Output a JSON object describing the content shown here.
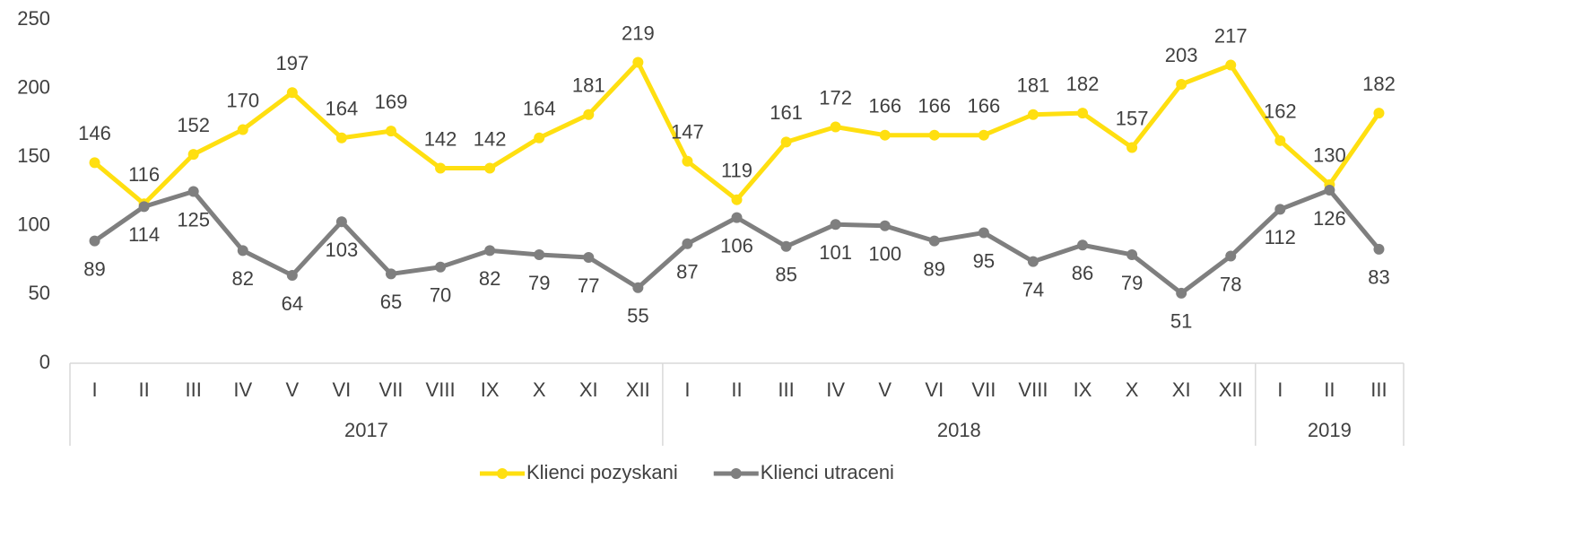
{
  "chart_data": {
    "type": "line",
    "groups": [
      {
        "label": "2017",
        "categories": [
          "I",
          "II",
          "III",
          "IV",
          "V",
          "VI",
          "VII",
          "VIII",
          "IX",
          "X",
          "XI",
          "XII"
        ]
      },
      {
        "label": "2018",
        "categories": [
          "I",
          "II",
          "III",
          "IV",
          "V",
          "VI",
          "VII",
          "VIII",
          "IX",
          "X",
          "XI",
          "XII"
        ]
      },
      {
        "label": "2019",
        "categories": [
          "I",
          "II",
          "III"
        ]
      }
    ],
    "series": [
      {
        "name": "Klienci pozyskani",
        "color": "#ffdf10",
        "values": [
          146,
          116,
          152,
          170,
          197,
          164,
          169,
          142,
          142,
          164,
          181,
          219,
          147,
          119,
          161,
          172,
          166,
          166,
          166,
          181,
          182,
          157,
          203,
          217,
          162,
          130,
          182
        ]
      },
      {
        "name": "Klienci utraceni",
        "color": "#7f7f7f",
        "values": [
          89,
          114,
          125,
          82,
          64,
          103,
          65,
          70,
          82,
          79,
          77,
          55,
          87,
          106,
          85,
          101,
          100,
          89,
          95,
          74,
          86,
          79,
          51,
          78,
          112,
          126,
          83
        ]
      }
    ],
    "ylim": [
      0,
      250
    ],
    "yticks": [
      0,
      50,
      100,
      150,
      200,
      250
    ],
    "grid": false,
    "legend": "bottom"
  }
}
